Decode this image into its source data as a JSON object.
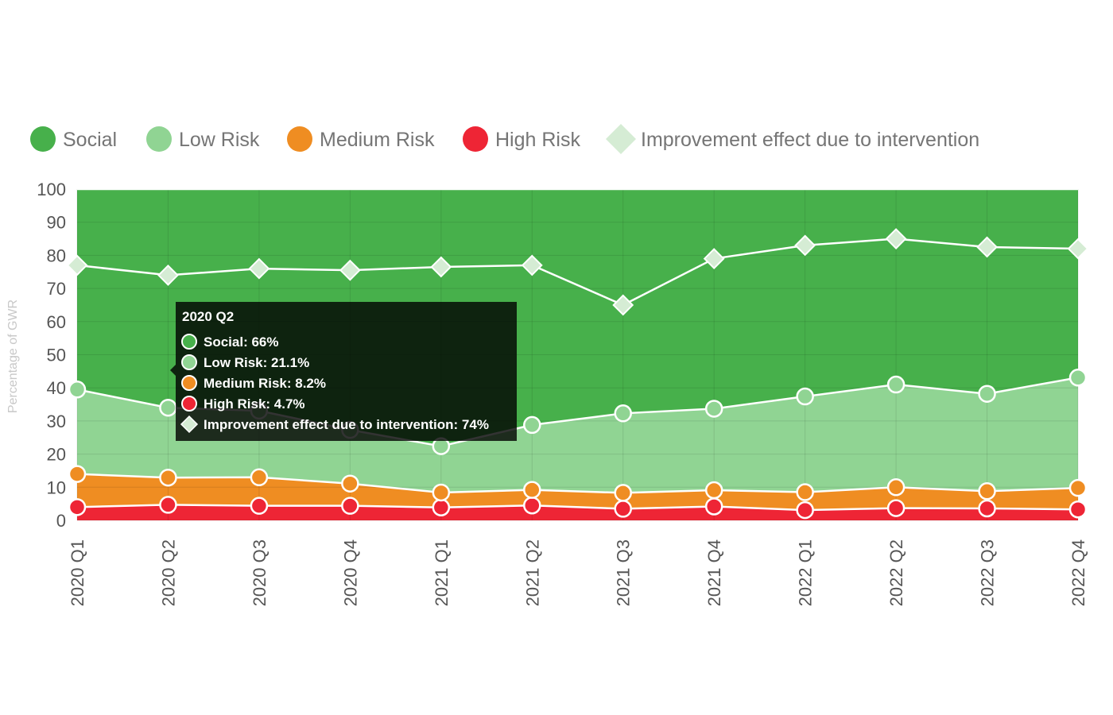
{
  "chart_data": {
    "type": "area",
    "stacked": true,
    "x": [
      "2020 Q1",
      "2020 Q2",
      "2020 Q3",
      "2020 Q4",
      "2021 Q1",
      "2021 Q2",
      "2021 Q3",
      "2021 Q4",
      "2022 Q1",
      "2022 Q2",
      "2022 Q3",
      "2022 Q4"
    ],
    "ylabel": "Percentage of GWR",
    "ylim": [
      0,
      100
    ],
    "yticks": [
      0,
      10,
      20,
      30,
      40,
      50,
      60,
      70,
      80,
      90,
      100
    ],
    "grid": true,
    "legend_position": "top",
    "series": [
      {
        "name": "Social",
        "color": "#47b04b",
        "values": [
          60.5,
          66,
          66.9,
          72.7,
          77.6,
          71.2,
          67.7,
          66.3,
          62.6,
          59,
          61.8,
          56.9
        ]
      },
      {
        "name": "Low Risk",
        "color": "#90d493",
        "values": [
          25.5,
          21.1,
          20.1,
          16.2,
          14,
          19.6,
          24,
          24.6,
          28.9,
          31,
          29.4,
          33.3
        ]
      },
      {
        "name": "Medium Risk",
        "color": "#ef8d22",
        "values": [
          10,
          8.2,
          8.6,
          6.7,
          4.5,
          4.7,
          4.8,
          4.9,
          5.4,
          6.3,
          5.2,
          6.5
        ]
      },
      {
        "name": "High Risk",
        "color": "#ee2535",
        "values": [
          4,
          4.7,
          4.4,
          4.4,
          3.9,
          4.5,
          3.5,
          4.2,
          3.1,
          3.7,
          3.6,
          3.3
        ]
      }
    ],
    "overlay_series": {
      "name": "Improvement effect due to intervention",
      "color": "#d5ecd4",
      "marker": "diamond",
      "values": [
        77,
        74,
        76,
        75.5,
        76.5,
        77,
        65,
        79,
        83,
        85,
        82.5,
        82
      ]
    },
    "tooltip": {
      "title": "2020 Q2",
      "lines": [
        {
          "text": "Social: 66%",
          "color": "#47b04b",
          "marker": "circle"
        },
        {
          "text": "Low Risk: 21.1%",
          "color": "#90d493",
          "marker": "circle"
        },
        {
          "text": "Medium Risk: 8.2%",
          "color": "#ef8d22",
          "marker": "circle"
        },
        {
          "text": "High Risk: 4.7%",
          "color": "#ee2535",
          "marker": "circle"
        },
        {
          "text": "Improvement effect due to intervention: 74%",
          "color": "#d5ecd4",
          "marker": "diamond"
        }
      ]
    }
  }
}
